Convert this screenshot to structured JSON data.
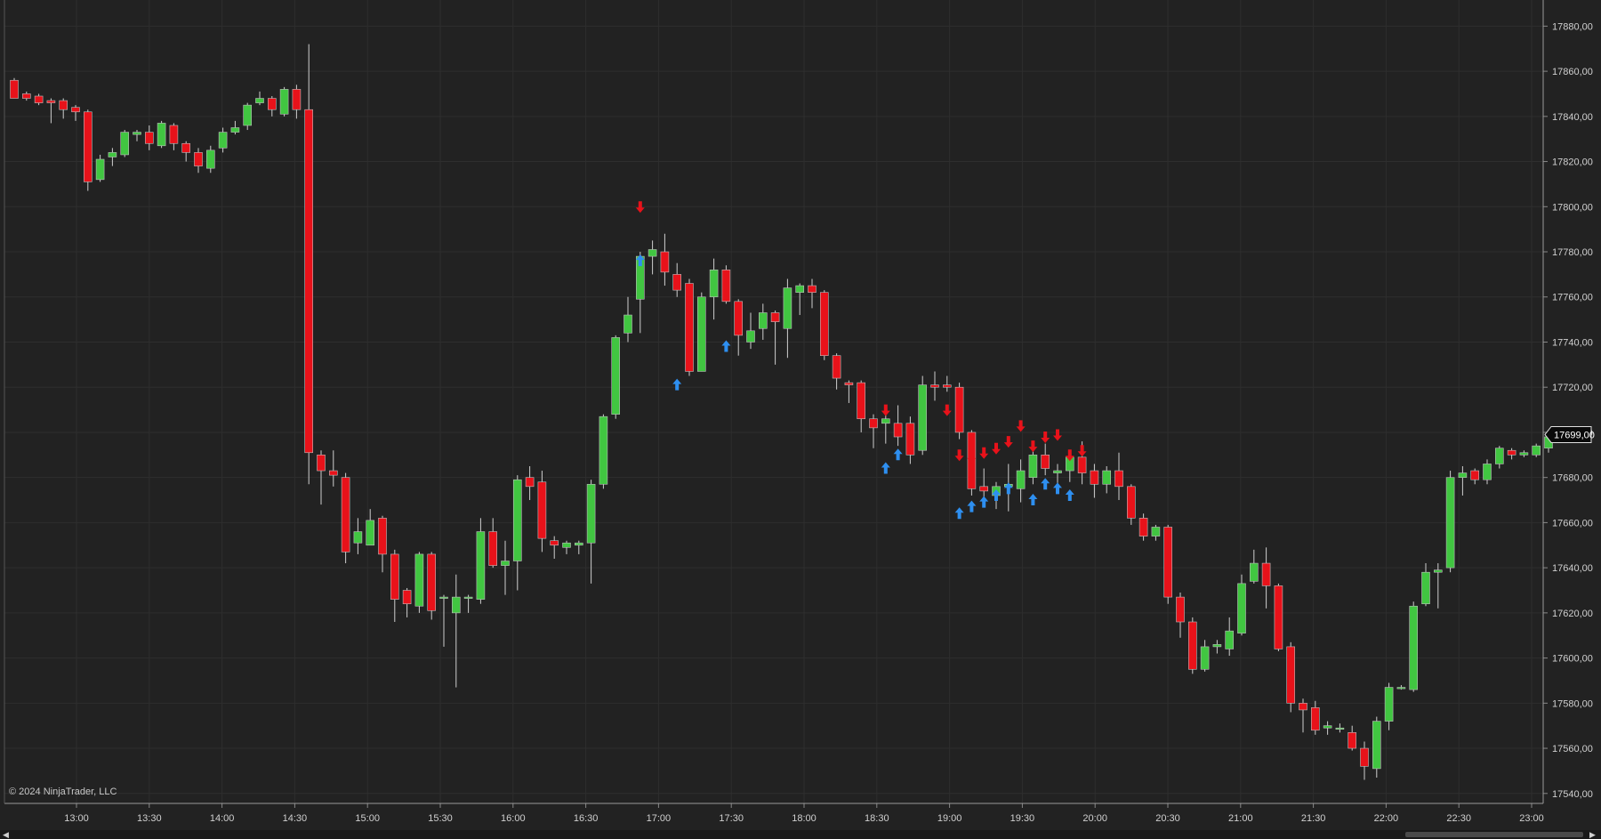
{
  "chart_data": {
    "type": "candlestick",
    "x_ticks": [
      "13:00",
      "13:30",
      "14:00",
      "14:30",
      "15:00",
      "15:30",
      "16:00",
      "16:30",
      "17:00",
      "17:30",
      "18:00",
      "18:30",
      "19:00",
      "19:30",
      "20:00",
      "20:30",
      "21:00",
      "21:30",
      "22:00",
      "22:30",
      "23:00"
    ],
    "y_ticks": [
      "17880,00",
      "17860,00",
      "17840,00",
      "17820,00",
      "17800,00",
      "17780,00",
      "17760,00",
      "17740,00",
      "17720,00",
      "17700,00",
      "17680,00",
      "17660,00",
      "17640,00",
      "17620,00",
      "17600,00",
      "17580,00",
      "17560,00",
      "17540,00"
    ],
    "ylim": [
      17534,
      17890
    ],
    "last_price": "17699,00",
    "colors": {
      "up": "#41c641",
      "down": "#e8121a",
      "marker_up": "#2e8ff0",
      "marker_down": "#e8121a",
      "background": "#222222",
      "grid": "#2e2e2e"
    },
    "candles": [
      [
        17856,
        17848,
        17857,
        17848
      ],
      [
        17850,
        17848,
        17851,
        17847
      ],
      [
        17849,
        17846,
        17850,
        17845
      ],
      [
        17847,
        17846,
        17848,
        17837
      ],
      [
        17847,
        17843,
        17848,
        17839
      ],
      [
        17844,
        17842,
        17845,
        17838
      ],
      [
        17842,
        17811,
        17843,
        17807
      ],
      [
        17812,
        17821,
        17823,
        17811
      ],
      [
        17822,
        17824,
        17826,
        17818
      ],
      [
        17823,
        17833,
        17834,
        17822
      ],
      [
        17832,
        17833,
        17834,
        17829
      ],
      [
        17833,
        17828,
        17836,
        17825
      ],
      [
        17827,
        17837,
        17838,
        17826
      ],
      [
        17836,
        17828,
        17837,
        17825
      ],
      [
        17828,
        17824,
        17829,
        17820
      ],
      [
        17824,
        17818,
        17826,
        17815
      ],
      [
        17817,
        17825,
        17827,
        17815
      ],
      [
        17826,
        17833,
        17835,
        17824
      ],
      [
        17833,
        17835,
        17838,
        17832
      ],
      [
        17836,
        17845,
        17846,
        17834
      ],
      [
        17846,
        17848,
        17851,
        17845
      ],
      [
        17848,
        17843,
        17849,
        17840
      ],
      [
        17841,
        17852,
        17853,
        17840
      ],
      [
        17852,
        17843,
        17854,
        17839
      ],
      [
        17843,
        17691,
        17872,
        17677
      ],
      [
        17690,
        17683,
        17692,
        17668
      ],
      [
        17683,
        17681,
        17692,
        17676
      ],
      [
        17680,
        17647,
        17682,
        17642
      ],
      [
        17651,
        17656,
        17662,
        17646
      ],
      [
        17650,
        17661,
        17666,
        17650
      ],
      [
        17662,
        17646,
        17663,
        17638
      ],
      [
        17646,
        17626,
        17648,
        17616
      ],
      [
        17630,
        17624,
        17631,
        17618
      ],
      [
        17623,
        17646,
        17647,
        17620
      ],
      [
        17646,
        17621,
        17647,
        17617
      ],
      [
        17627,
        17627,
        17628,
        17605
      ],
      [
        17620,
        17627,
        17637,
        17587
      ],
      [
        17627,
        17627,
        17628,
        17620
      ],
      [
        17626,
        17656,
        17662,
        17624
      ],
      [
        17656,
        17641,
        17662,
        17640
      ],
      [
        17641,
        17643,
        17652,
        17628
      ],
      [
        17643,
        17679,
        17681,
        17630
      ],
      [
        17680,
        17676,
        17685,
        17670
      ],
      [
        17678,
        17653,
        17683,
        17647
      ],
      [
        17652,
        17650,
        17654,
        17644
      ],
      [
        17649,
        17651,
        17652,
        17646
      ],
      [
        17650,
        17651,
        17652,
        17646
      ],
      [
        17651,
        17677,
        17679,
        17633
      ],
      [
        17677,
        17707,
        17708,
        17675
      ],
      [
        17708,
        17742,
        17743,
        17706
      ],
      [
        17744,
        17752,
        17760,
        17740
      ],
      [
        17759,
        17778,
        17780,
        17744
      ],
      [
        17778,
        17781,
        17785,
        17770
      ],
      [
        17780,
        17771,
        17788,
        17765
      ],
      [
        17770,
        17763,
        17775,
        17760
      ],
      [
        17766,
        17727,
        17768,
        17725
      ],
      [
        17727,
        17760,
        17762,
        17727
      ],
      [
        17760,
        17772,
        17777,
        17750
      ],
      [
        17772,
        17758,
        17774,
        17757
      ],
      [
        17758,
        17743,
        17759,
        17734
      ],
      [
        17740,
        17745,
        17753,
        17737
      ],
      [
        17746,
        17753,
        17757,
        17741
      ],
      [
        17753,
        17749,
        17754,
        17730
      ],
      [
        17746,
        17764,
        17768,
        17733
      ],
      [
        17762,
        17765,
        17766,
        17752
      ],
      [
        17765,
        17762,
        17768,
        17755
      ],
      [
        17762,
        17734,
        17763,
        17732
      ],
      [
        17734,
        17724,
        17735,
        17719
      ],
      [
        17722,
        17721,
        17723,
        17713
      ],
      [
        17722,
        17706,
        17723,
        17700
      ],
      [
        17706,
        17702,
        17708,
        17693
      ],
      [
        17704,
        17706,
        17710,
        17695
      ],
      [
        17704,
        17698,
        17712,
        17694
      ],
      [
        17704,
        17690,
        17707,
        17686
      ],
      [
        17692,
        17721,
        17725,
        17690
      ],
      [
        17721,
        17720,
        17727,
        17714
      ],
      [
        17721,
        17720,
        17725,
        17718
      ],
      [
        17720,
        17700,
        17722,
        17697
      ],
      [
        17700,
        17675,
        17701,
        17672
      ],
      [
        17676,
        17674,
        17684,
        17668
      ],
      [
        17672,
        17676,
        17678,
        17666
      ],
      [
        17676,
        17677,
        17686,
        17665
      ],
      [
        17675,
        17683,
        17688,
        17669
      ],
      [
        17680,
        17690,
        17694,
        17677
      ],
      [
        17690,
        17684,
        17695,
        17681
      ],
      [
        17682,
        17683,
        17686,
        17673
      ],
      [
        17683,
        17689,
        17691,
        17678
      ],
      [
        17689,
        17682,
        17696,
        17677
      ],
      [
        17683,
        17677,
        17686,
        17671
      ],
      [
        17677,
        17683,
        17685,
        17673
      ],
      [
        17683,
        17676,
        17691,
        17670
      ],
      [
        17676,
        17662,
        17677,
        17659
      ],
      [
        17662,
        17654,
        17664,
        17652
      ],
      [
        17654,
        17658,
        17659,
        17652
      ],
      [
        17658,
        17627,
        17659,
        17624
      ],
      [
        17627,
        17616,
        17629,
        17609
      ],
      [
        17616,
        17595,
        17618,
        17593
      ],
      [
        17595,
        17605,
        17608,
        17594
      ],
      [
        17605,
        17606,
        17608,
        17602
      ],
      [
        17604,
        17612,
        17618,
        17601
      ],
      [
        17611,
        17633,
        17637,
        17610
      ],
      [
        17634,
        17642,
        17648,
        17633
      ],
      [
        17642,
        17632,
        17649,
        17622
      ],
      [
        17632,
        17604,
        17633,
        17603
      ],
      [
        17605,
        17580,
        17607,
        17576
      ],
      [
        17580,
        17577,
        17582,
        17567
      ],
      [
        17578,
        17568,
        17581,
        17566
      ],
      [
        17569,
        17570,
        17572,
        17566
      ],
      [
        17569,
        17569,
        17571,
        17567
      ],
      [
        17567,
        17560,
        17570,
        17559
      ],
      [
        17560,
        17552,
        17563,
        17546
      ],
      [
        17551,
        17572,
        17574,
        17547
      ],
      [
        17572,
        17587,
        17589,
        17568
      ],
      [
        17587,
        17587,
        17588,
        17586
      ],
      [
        17586,
        17623,
        17625,
        17585
      ],
      [
        17624,
        17638,
        17642,
        17623
      ],
      [
        17638,
        17639,
        17642,
        17622
      ],
      [
        17640,
        17680,
        17683,
        17638
      ],
      [
        17680,
        17682,
        17685,
        17672
      ],
      [
        17683,
        17679,
        17684,
        17677
      ],
      [
        17679,
        17686,
        17688,
        17677
      ],
      [
        17686,
        17693,
        17694,
        17684
      ],
      [
        17692,
        17690,
        17693,
        17688
      ],
      [
        17690,
        17691,
        17692,
        17689
      ],
      [
        17690,
        17694,
        17695,
        17689
      ],
      [
        17693,
        17698,
        17700,
        17691
      ],
      [
        17698,
        17699,
        17700,
        17697
      ],
      [
        17699,
        17700,
        17701,
        17698
      ],
      [
        17700,
        17699,
        17701,
        17697
      ]
    ],
    "markers_up": [
      [
        51,
        17776
      ],
      [
        54,
        17721
      ],
      [
        58,
        17738
      ],
      [
        71,
        17684
      ],
      [
        72,
        17690
      ],
      [
        77,
        17664
      ],
      [
        78,
        17667
      ],
      [
        79,
        17669
      ],
      [
        80,
        17672
      ],
      [
        81,
        17675
      ],
      [
        83,
        17670
      ],
      [
        84,
        17677
      ],
      [
        85,
        17675
      ],
      [
        86,
        17672
      ]
    ],
    "markers_down": [
      [
        51,
        17800
      ],
      [
        76,
        17710
      ],
      [
        71,
        17710
      ],
      [
        77,
        17690
      ],
      [
        78,
        17689
      ],
      [
        79,
        17691
      ],
      [
        80,
        17693
      ],
      [
        81,
        17696
      ],
      [
        82,
        17703
      ],
      [
        83,
        17694
      ],
      [
        84,
        17698
      ],
      [
        85,
        17699
      ],
      [
        86,
        17690
      ],
      [
        87,
        17692
      ]
    ]
  },
  "copyright": "© 2024 NinjaTrader, LLC"
}
